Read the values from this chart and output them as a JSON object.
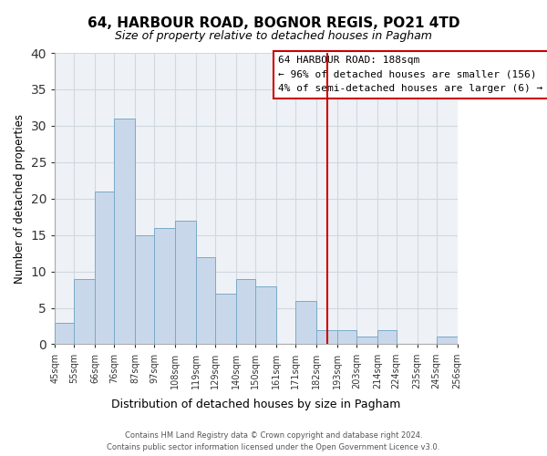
{
  "title": "64, HARBOUR ROAD, BOGNOR REGIS, PO21 4TD",
  "subtitle": "Size of property relative to detached houses in Pagham",
  "xlabel": "Distribution of detached houses by size in Pagham",
  "ylabel": "Number of detached properties",
  "bin_labels": [
    "45sqm",
    "55sqm",
    "66sqm",
    "76sqm",
    "87sqm",
    "97sqm",
    "108sqm",
    "119sqm",
    "129sqm",
    "140sqm",
    "150sqm",
    "161sqm",
    "171sqm",
    "182sqm",
    "193sqm",
    "203sqm",
    "214sqm",
    "224sqm",
    "235sqm",
    "245sqm",
    "256sqm"
  ],
  "bin_edges": [
    45,
    55,
    66,
    76,
    87,
    97,
    108,
    119,
    129,
    140,
    150,
    161,
    171,
    182,
    193,
    203,
    214,
    224,
    235,
    245,
    256
  ],
  "counts": [
    3,
    9,
    21,
    31,
    15,
    16,
    17,
    12,
    7,
    9,
    8,
    0,
    6,
    2,
    2,
    1,
    2,
    0,
    0,
    1
  ],
  "bar_color": "#c8d8ea",
  "bar_edge_color": "#7aaac8",
  "property_line_x": 188,
  "property_line_color": "#cc0000",
  "ylim": [
    0,
    40
  ],
  "yticks": [
    0,
    5,
    10,
    15,
    20,
    25,
    30,
    35,
    40
  ],
  "grid_color": "#d0d8e0",
  "legend_title": "64 HARBOUR ROAD: 188sqm",
  "legend_line1": "← 96% of detached houses are smaller (156)",
  "legend_line2": "4% of semi-detached houses are larger (6) →",
  "footer_line1": "Contains HM Land Registry data © Crown copyright and database right 2024.",
  "footer_line2": "Contains public sector information licensed under the Open Government Licence v3.0.",
  "background_color": "#ffffff",
  "axes_bg_color": "#eef2f7"
}
